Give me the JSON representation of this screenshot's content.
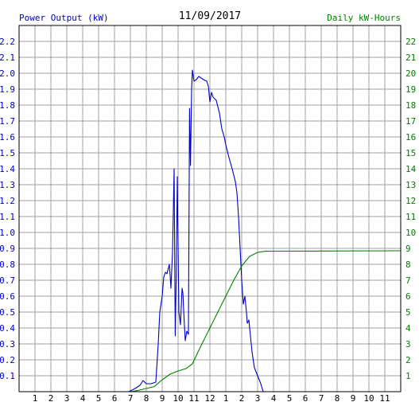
{
  "chart_data": {
    "type": "line",
    "title": "11/09/2017",
    "left_axis_label": "Power Output (kW)",
    "right_axis_label": "Daily kW-Hours",
    "x_ticks": [
      "1",
      "2",
      "3",
      "4",
      "5",
      "6",
      "7",
      "8",
      "9",
      "10",
      "11",
      "12",
      "1",
      "2",
      "3",
      "4",
      "5",
      "6",
      "7",
      "8",
      "9",
      "10",
      "11"
    ],
    "x_range_hours": [
      0,
      24
    ],
    "left_ylim": [
      0,
      2.3
    ],
    "left_ticks": [
      "0.1",
      "0.2",
      "0.3",
      "0.4",
      "0.5",
      "0.6",
      "0.7",
      "0.8",
      "0.9",
      "1.0",
      "1.1",
      "1.2",
      "1.3",
      "1.4",
      "1.5",
      "1.6",
      "1.7",
      "1.8",
      "1.9",
      "2.0",
      "2.1",
      "2.2"
    ],
    "right_ylim": [
      0,
      23
    ],
    "right_ticks": [
      "1",
      "2",
      "3",
      "4",
      "5",
      "6",
      "7",
      "8",
      "9",
      "10",
      "11",
      "12",
      "13",
      "14",
      "15",
      "16",
      "17",
      "18",
      "19",
      "20",
      "21",
      "22"
    ],
    "grid": true,
    "colors": {
      "power": "#0000c8",
      "energy": "#008000",
      "left_axis": "#0000c8",
      "right_axis": "#008000",
      "grid": "#a0a0a0",
      "frame": "#000000",
      "title": "#000000"
    },
    "series": [
      {
        "axis": "left",
        "color": "#0000c8",
        "points": [
          [
            0,
            0
          ],
          [
            6.9,
            0
          ],
          [
            7.3,
            0.02
          ],
          [
            7.6,
            0.04
          ],
          [
            7.8,
            0.07
          ],
          [
            8.0,
            0.05
          ],
          [
            8.3,
            0.05
          ],
          [
            8.6,
            0.06
          ],
          [
            8.75,
            0.3
          ],
          [
            8.85,
            0.5
          ],
          [
            9.0,
            0.6
          ],
          [
            9.1,
            0.72
          ],
          [
            9.2,
            0.75
          ],
          [
            9.3,
            0.74
          ],
          [
            9.45,
            0.8
          ],
          [
            9.55,
            0.65
          ],
          [
            9.65,
            0.88
          ],
          [
            9.75,
            1.4
          ],
          [
            9.82,
            0.35
          ],
          [
            9.88,
            0.7
          ],
          [
            9.95,
            1.35
          ],
          [
            10.05,
            0.5
          ],
          [
            10.15,
            0.42
          ],
          [
            10.25,
            0.65
          ],
          [
            10.3,
            0.62
          ],
          [
            10.38,
            0.45
          ],
          [
            10.45,
            0.32
          ],
          [
            10.55,
            0.38
          ],
          [
            10.65,
            0.36
          ],
          [
            10.72,
            1.78
          ],
          [
            10.78,
            1.42
          ],
          [
            10.85,
            1.9
          ],
          [
            10.9,
            2.02
          ],
          [
            11.0,
            1.95
          ],
          [
            11.15,
            1.96
          ],
          [
            11.3,
            1.98
          ],
          [
            11.6,
            1.96
          ],
          [
            11.8,
            1.95
          ],
          [
            11.9,
            1.92
          ],
          [
            12.0,
            1.82
          ],
          [
            12.1,
            1.88
          ],
          [
            12.2,
            1.85
          ],
          [
            12.4,
            1.83
          ],
          [
            12.6,
            1.75
          ],
          [
            12.75,
            1.65
          ],
          [
            12.9,
            1.6
          ],
          [
            13.0,
            1.55
          ],
          [
            13.2,
            1.47
          ],
          [
            13.4,
            1.4
          ],
          [
            13.6,
            1.32
          ],
          [
            13.7,
            1.25
          ],
          [
            13.8,
            1.1
          ],
          [
            13.9,
            0.9
          ],
          [
            14.0,
            0.7
          ],
          [
            14.1,
            0.55
          ],
          [
            14.2,
            0.6
          ],
          [
            14.3,
            0.5
          ],
          [
            14.35,
            0.43
          ],
          [
            14.45,
            0.45
          ],
          [
            14.55,
            0.35
          ],
          [
            14.65,
            0.25
          ],
          [
            14.8,
            0.15
          ],
          [
            15.0,
            0.1
          ],
          [
            15.2,
            0.05
          ],
          [
            15.35,
            0.0
          ],
          [
            24,
            0
          ]
        ]
      },
      {
        "axis": "right",
        "color": "#008000",
        "points": [
          [
            0,
            0
          ],
          [
            7.0,
            0
          ],
          [
            7.5,
            0.08
          ],
          [
            8.0,
            0.2
          ],
          [
            8.5,
            0.32
          ],
          [
            9.0,
            0.75
          ],
          [
            9.5,
            1.1
          ],
          [
            10.0,
            1.3
          ],
          [
            10.5,
            1.45
          ],
          [
            10.9,
            1.75
          ],
          [
            11.5,
            3.0
          ],
          [
            12.0,
            4.0
          ],
          [
            12.5,
            5.0
          ],
          [
            13.0,
            6.0
          ],
          [
            13.5,
            7.0
          ],
          [
            14.0,
            7.9
          ],
          [
            14.5,
            8.5
          ],
          [
            15.0,
            8.75
          ],
          [
            15.5,
            8.82
          ],
          [
            24,
            8.85
          ]
        ]
      }
    ]
  }
}
